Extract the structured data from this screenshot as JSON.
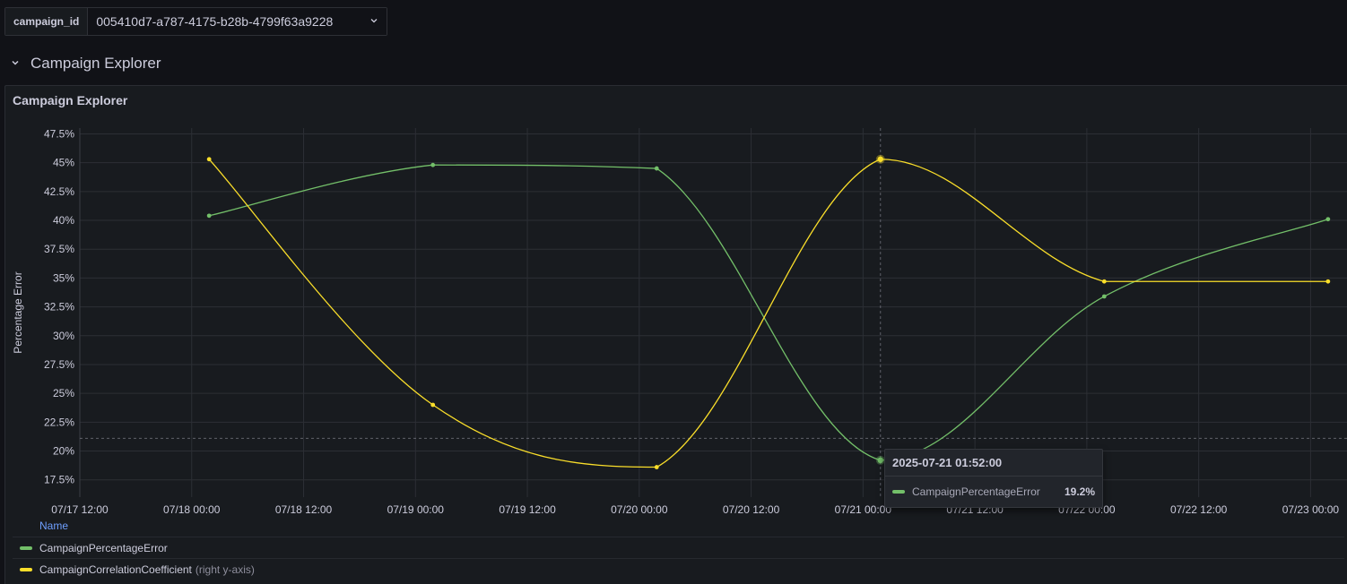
{
  "variable": {
    "label": "campaign_id",
    "value": "005410d7-a787-4175-b28b-4799f63a9228",
    "chevron_icon": "chevron-down-icon"
  },
  "row": {
    "title": "Campaign Explorer",
    "chevron_icon": "chevron-down-icon"
  },
  "panel": {
    "title": "Campaign Explorer"
  },
  "colors": {
    "series_green": "#73bf69",
    "series_yellow": "#fade2a",
    "grid": "#2c2f35",
    "axis_text": "#ccccdc"
  },
  "legend": {
    "header": "Name",
    "items": [
      {
        "name": "CampaignPercentageError",
        "suffix": ""
      },
      {
        "name": "CampaignCorrelationCoefficient",
        "suffix": "(right y-axis)"
      }
    ]
  },
  "tooltip": {
    "time": "2025-07-21 01:52:00",
    "series": "CampaignPercentageError",
    "value": "19.2%"
  },
  "chart_data": {
    "type": "line",
    "ylabel": "Percentage Error",
    "ylim": [
      16,
      48
    ],
    "yticks": [
      "17.5%",
      "20%",
      "22.5%",
      "25%",
      "27.5%",
      "30%",
      "32.5%",
      "35%",
      "37.5%",
      "40%",
      "42.5%",
      "45%",
      "47.5%"
    ],
    "ytick_values": [
      17.5,
      20,
      22.5,
      25,
      27.5,
      30,
      32.5,
      35,
      37.5,
      40,
      42.5,
      45,
      47.5
    ],
    "xlim": [
      "2025-07-17 12:00",
      "2025-07-23 04:00"
    ],
    "xticks": [
      "07/17 12:00",
      "07/18 00:00",
      "07/18 12:00",
      "07/19 00:00",
      "07/19 12:00",
      "07/20 00:00",
      "07/20 12:00",
      "07/21 00:00",
      "07/21 12:00",
      "07/22 00:00",
      "07/22 12:00",
      "07/23 00:00"
    ],
    "xtick_values": [
      "2025-07-17 12:00",
      "2025-07-18 00:00",
      "2025-07-18 12:00",
      "2025-07-19 00:00",
      "2025-07-19 12:00",
      "2025-07-20 00:00",
      "2025-07-20 12:00",
      "2025-07-21 00:00",
      "2025-07-21 12:00",
      "2025-07-22 00:00",
      "2025-07-22 12:00",
      "2025-07-23 00:00"
    ],
    "x": [
      "2025-07-18 01:52",
      "2025-07-19 01:52",
      "2025-07-20 01:52",
      "2025-07-21 01:52",
      "2025-07-22 01:52",
      "2025-07-23 01:52"
    ],
    "series": [
      {
        "name": "CampaignPercentageError",
        "color": "#73bf69",
        "values": [
          40.4,
          44.8,
          44.5,
          19.2,
          33.4,
          40.1
        ]
      },
      {
        "name": "CampaignCorrelationCoefficient",
        "color": "#fade2a",
        "axis": "right",
        "values": [
          45.3,
          24.0,
          18.6,
          45.3,
          34.7,
          34.7
        ]
      }
    ],
    "grid": true,
    "legend": "bottom",
    "hover_x": "2025-07-21 01:52",
    "hover_y": 21.1
  }
}
